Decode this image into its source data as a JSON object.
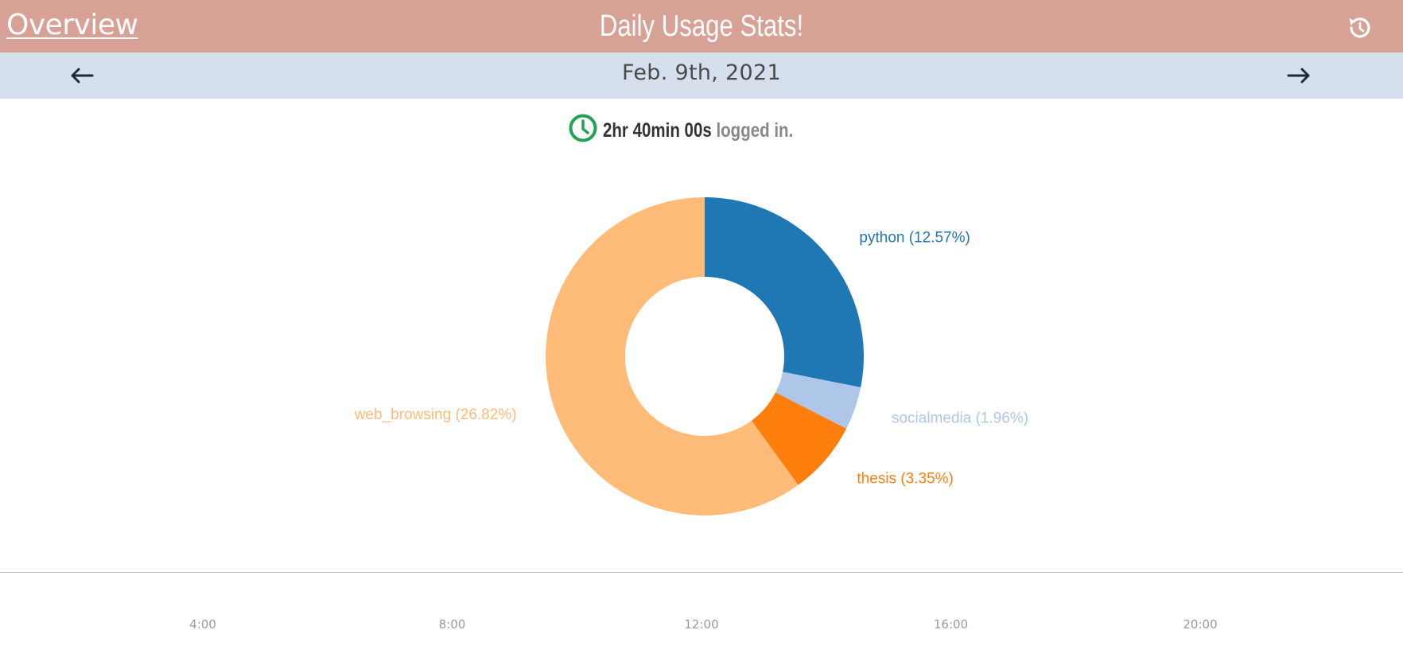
{
  "header": {
    "overview_link": "Overview",
    "title": "Daily Usage Stats!",
    "reset_icon": "reset-icon"
  },
  "datebar": {
    "prev_icon": "arrow-left-icon",
    "date": "Feb. 9th, 2021",
    "next_icon": "arrow-right-icon"
  },
  "summary": {
    "icon": "clock-icon",
    "duration": "2hr 40min 00s",
    "suffix": "logged in."
  },
  "chart_data": {
    "type": "pie",
    "donut": true,
    "slices": [
      {
        "label": "python (12.57%)",
        "value": 12.57,
        "color": "#1f77b4"
      },
      {
        "label": "socialmedia (1.96%)",
        "value": 1.96,
        "color": "#aec7e8"
      },
      {
        "label": "thesis (3.35%)",
        "value": 3.35,
        "color": "#ff7f0e"
      },
      {
        "label": "web_browsing (26.82%)",
        "value": 26.82,
        "color": "#ffbb78"
      }
    ]
  },
  "timeline": {
    "ticks": [
      "4:00",
      "8:00",
      "12:00",
      "16:00",
      "20:00"
    ]
  },
  "colors": {
    "header_bg": "#d7a295",
    "datebar_bg": "#d6e0ec",
    "clock": "#22a253"
  }
}
